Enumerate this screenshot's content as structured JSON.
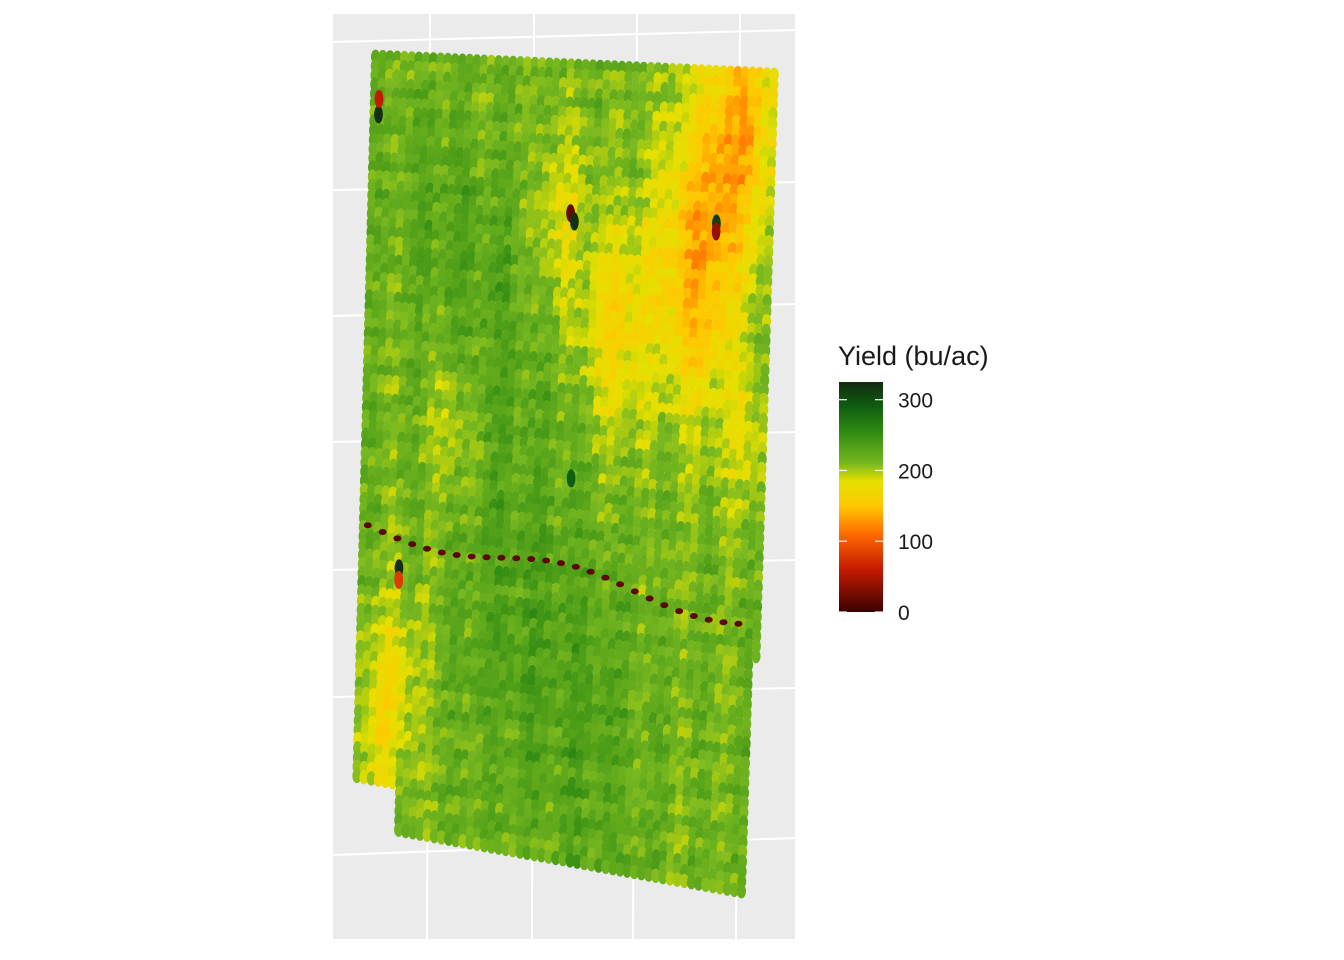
{
  "chart_data": {
    "type": "heatmap",
    "subtype": "yield map (geospatial point raster)",
    "title": "",
    "xlabel": "",
    "ylabel": "",
    "grid": true,
    "panel_background": "#EBEBEB",
    "legend": {
      "title": "Yield (bu/ac)",
      "placement": "right",
      "limits": [
        0,
        325
      ],
      "ticks": [
        0,
        100,
        200,
        300
      ],
      "tick_labels": [
        "0",
        "100",
        "200",
        "300"
      ],
      "color_stops": [
        {
          "value": 0,
          "color": "#3B0000"
        },
        {
          "value": 60,
          "color": "#C41A00"
        },
        {
          "value": 110,
          "color": "#FF6A00"
        },
        {
          "value": 150,
          "color": "#FFC800"
        },
        {
          "value": 185,
          "color": "#E5E000"
        },
        {
          "value": 210,
          "color": "#78B820"
        },
        {
          "value": 255,
          "color": "#2F8A12"
        },
        {
          "value": 290,
          "color": "#0F5E10"
        },
        {
          "value": 325,
          "color": "#142A12"
        }
      ]
    },
    "field": {
      "rows": 84,
      "cols": 56,
      "typical_yield": 215,
      "low_yield_zones": [
        {
          "u": 0.92,
          "v": 0.06,
          "yield": 150,
          "radius": 0.09
        },
        {
          "u": 0.82,
          "v": 0.24,
          "yield": 140,
          "radius": 0.11
        },
        {
          "u": 0.62,
          "v": 0.33,
          "yield": 168,
          "radius": 0.08
        },
        {
          "u": 0.48,
          "v": 0.2,
          "yield": 185,
          "radius": 0.07
        },
        {
          "u": 0.22,
          "v": 0.48,
          "yield": 190,
          "radius": 0.06
        },
        {
          "u": 0.1,
          "v": 0.8,
          "yield": 185,
          "radius": 0.07
        },
        {
          "u": 0.06,
          "v": 0.87,
          "yield": 188,
          "radius": 0.06
        },
        {
          "u": 0.95,
          "v": 0.45,
          "yield": 188,
          "radius": 0.05
        }
      ],
      "high_yield_zones": [
        {
          "u": 0.3,
          "v": 0.3,
          "yield": 240,
          "radius": 0.12
        },
        {
          "u": 0.4,
          "v": 0.7,
          "yield": 245,
          "radius": 0.15
        },
        {
          "u": 0.6,
          "v": 0.85,
          "yield": 238,
          "radius": 0.12
        },
        {
          "u": 0.15,
          "v": 0.2,
          "yield": 235,
          "radius": 0.08
        }
      ],
      "anomaly_points": [
        {
          "u": 0.5,
          "v": 0.19,
          "yield": 20
        },
        {
          "u": 0.51,
          "v": 0.2,
          "yield": 320
        },
        {
          "u": 0.86,
          "v": 0.19,
          "yield": 310
        },
        {
          "u": 0.86,
          "v": 0.2,
          "yield": 40
        },
        {
          "u": 0.02,
          "v": 0.08,
          "yield": 320
        },
        {
          "u": 0.02,
          "v": 0.06,
          "yield": 60
        },
        {
          "u": 0.1,
          "v": 0.66,
          "yield": 320
        },
        {
          "u": 0.1,
          "v": 0.675,
          "yield": 80
        },
        {
          "u": 0.52,
          "v": 0.52,
          "yield": 290
        }
      ]
    }
  }
}
